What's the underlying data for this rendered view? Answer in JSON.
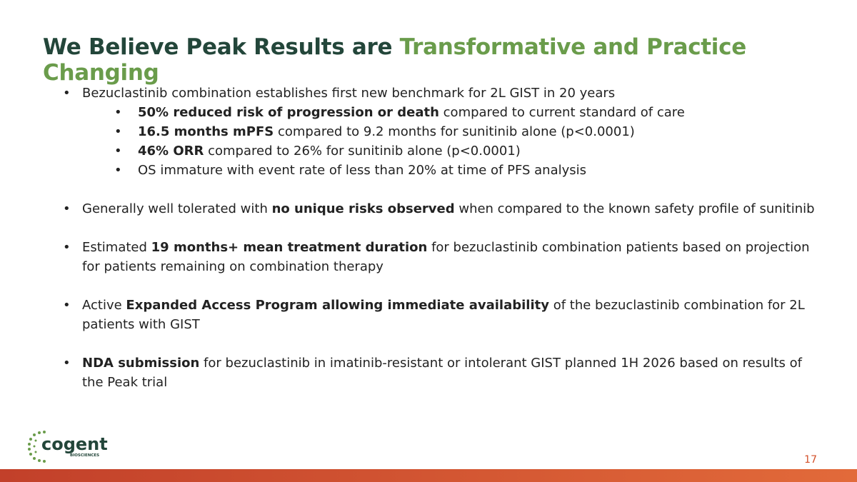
{
  "header": {
    "title": [
      {
        "text": "We Believe Peak Results are ",
        "color": "#23463a"
      },
      {
        "text": "Transformative and Practice Changing",
        "color": "#6a9c4b"
      }
    ]
  },
  "bullets": [
    {
      "runs": [
        {
          "text": "Bezuclastinib combination establishes first new benchmark for 2L GIST in 20 years",
          "bold": false
        }
      ],
      "sub": [
        {
          "runs": [
            {
              "text": "50% reduced risk of progression or death",
              "bold": true
            },
            {
              "text": " compared to current standard of care",
              "bold": false
            }
          ]
        },
        {
          "runs": [
            {
              "text": "16.5 months mPFS",
              "bold": true
            },
            {
              "text": " compared to 9.2 months for sunitinib alone (p<0.0001)",
              "bold": false
            }
          ]
        },
        {
          "runs": [
            {
              "text": "46% ORR",
              "bold": true
            },
            {
              "text": " compared to 26% for sunitinib alone (p<0.0001)",
              "bold": false
            }
          ]
        },
        {
          "runs": [
            {
              "text": "OS immature with event rate of less than 20% at time of PFS analysis",
              "bold": false
            }
          ]
        }
      ]
    },
    {
      "runs": [
        {
          "text": "Generally well tolerated with ",
          "bold": false
        },
        {
          "text": "no unique risks observed",
          "bold": true
        },
        {
          "text": " when compared to the known safety profile of sunitinib",
          "bold": false
        }
      ],
      "sub": []
    },
    {
      "runs": [
        {
          "text": "Estimated ",
          "bold": false
        },
        {
          "text": "19 months+ mean treatment duration",
          "bold": true
        },
        {
          "text": " for bezuclastinib combination patients based on projection for patients remaining on combination therapy",
          "bold": false
        }
      ],
      "sub": []
    },
    {
      "runs": [
        {
          "text": "Active ",
          "bold": false
        },
        {
          "text": "Expanded Access Program allowing immediate availability",
          "bold": true
        },
        {
          "text": " of the bezuclastinib combination for 2L patients with GIST",
          "bold": false
        }
      ],
      "sub": []
    },
    {
      "runs": [
        {
          "text": "NDA submission",
          "bold": true
        },
        {
          "text": " for bezuclastinib in imatinib-resistant or intolerant GIST planned 1H 2026 based on results of the Peak trial",
          "bold": false
        }
      ],
      "sub": []
    }
  ],
  "footer": {
    "logo": {
      "name": "cogent",
      "tagline": "BIOSCIENCES"
    },
    "page_number": "17"
  }
}
